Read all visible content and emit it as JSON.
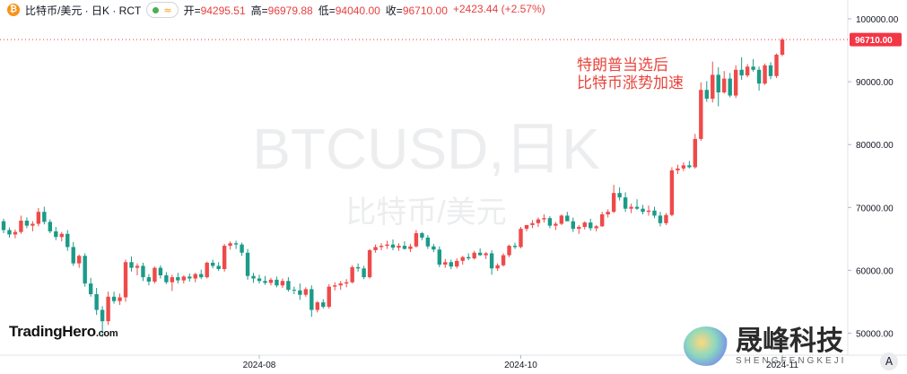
{
  "header": {
    "coin_icon": "bitcoin-icon",
    "symbol": "比特币/美元 · 日K · RCT",
    "status_wave": "≈",
    "open_label": "开=",
    "open_value": "94295.51",
    "high_label": "高=",
    "high_value": "96979.88",
    "low_label": "低=",
    "low_value": "94040.00",
    "close_label": "收=",
    "close_value": "96710.00",
    "change": "+2423.44 (+2.57%)"
  },
  "watermark": {
    "symbol": "BTCUSD,日K",
    "name": "比特币/美元"
  },
  "annotation": {
    "line1": "特朗普当选后",
    "line2": "比特币涨势加速"
  },
  "price_tag": "96710.00",
  "branding": {
    "left_main": "TradingHero",
    "left_suffix": ".com",
    "right_cn": "晟峰科技",
    "right_en": "SHENGFENGKEJI"
  },
  "auto_scale_button": "A",
  "colors": {
    "up": "#ef4a4a",
    "down": "#1b9b88",
    "accent": "#e8453c",
    "price_tag": "#f23645"
  },
  "chart_data": {
    "type": "candlestick",
    "title": "BTCUSD,日K",
    "ylim": [
      46500,
      103000
    ],
    "yticks": [
      {
        "value": 100000,
        "label": "100000.00"
      },
      {
        "value": 90000,
        "label": "90000.00"
      },
      {
        "value": 80000,
        "label": "80000.00"
      },
      {
        "value": 70000,
        "label": "70000.00"
      },
      {
        "value": 60000,
        "label": "60000.00"
      },
      {
        "value": 50000,
        "label": "50000.00"
      }
    ],
    "xticks": [
      {
        "index": 44,
        "label": "2024-08"
      },
      {
        "index": 89,
        "label": "2024-10"
      },
      {
        "index": 134,
        "label": "2024-11"
      }
    ],
    "last_close": 96710,
    "candles": [
      [
        67800,
        68200,
        65900,
        66400
      ],
      [
        66400,
        66800,
        65200,
        65700
      ],
      [
        65700,
        66500,
        65100,
        66100
      ],
      [
        66100,
        68700,
        65800,
        67900
      ],
      [
        67900,
        68400,
        66700,
        67100
      ],
      [
        67100,
        67800,
        66200,
        67400
      ],
      [
        67400,
        69900,
        67000,
        69300
      ],
      [
        69300,
        70100,
        67300,
        67700
      ],
      [
        67700,
        68100,
        65900,
        66200
      ],
      [
        66200,
        66900,
        64800,
        65300
      ],
      [
        65300,
        66100,
        64600,
        65800
      ],
      [
        65800,
        66400,
        63100,
        63700
      ],
      [
        63700,
        64500,
        60700,
        61100
      ],
      [
        61100,
        62500,
        60400,
        62300
      ],
      [
        62300,
        62700,
        57400,
        57900
      ],
      [
        57900,
        58800,
        55800,
        56200
      ],
      [
        56200,
        57200,
        52900,
        53700
      ],
      [
        53700,
        54300,
        49400,
        51900
      ],
      [
        51900,
        56600,
        51300,
        55800
      ],
      [
        55800,
        56600,
        54700,
        55100
      ],
      [
        55100,
        56300,
        54500,
        55700
      ],
      [
        55700,
        61700,
        55000,
        61300
      ],
      [
        61300,
        62200,
        59800,
        60400
      ],
      [
        60400,
        61100,
        59200,
        60700
      ],
      [
        60700,
        61200,
        58300,
        58900
      ],
      [
        58900,
        59400,
        57600,
        58200
      ],
      [
        58200,
        60600,
        57900,
        60400
      ],
      [
        60400,
        60800,
        58700,
        59200
      ],
      [
        59200,
        59700,
        57800,
        58100
      ],
      [
        58100,
        59300,
        56700,
        58900
      ],
      [
        58900,
        59600,
        57900,
        58400
      ],
      [
        58400,
        59200,
        57900,
        59000
      ],
      [
        59000,
        59500,
        58200,
        58700
      ],
      [
        58700,
        59600,
        58100,
        59400
      ],
      [
        59400,
        60100,
        58600,
        58900
      ],
      [
        58900,
        61400,
        58700,
        61200
      ],
      [
        61200,
        61700,
        60300,
        60700
      ],
      [
        60700,
        61300,
        59900,
        60200
      ],
      [
        60200,
        64200,
        59800,
        63900
      ],
      [
        63900,
        64600,
        63300,
        64300
      ],
      [
        64300,
        64700,
        63400,
        64100
      ],
      [
        64100,
        64400,
        62300,
        62800
      ],
      [
        62800,
        63400,
        58500,
        59100
      ],
      [
        59100,
        59600,
        58000,
        58700
      ],
      [
        58700,
        59300,
        57900,
        58300
      ],
      [
        58300,
        59100,
        57700,
        58000
      ],
      [
        58000,
        58800,
        57600,
        58500
      ],
      [
        58500,
        59000,
        57300,
        57600
      ],
      [
        57600,
        58700,
        57200,
        58300
      ],
      [
        58300,
        58900,
        56600,
        56900
      ],
      [
        56900,
        57400,
        56200,
        56800
      ],
      [
        56800,
        57900,
        55300,
        56100
      ],
      [
        56100,
        57300,
        55800,
        57000
      ],
      [
        57000,
        57600,
        52600,
        53700
      ],
      [
        53700,
        55100,
        53300,
        54900
      ],
      [
        54900,
        55400,
        53900,
        54200
      ],
      [
        54200,
        57800,
        53900,
        57400
      ],
      [
        57400,
        58100,
        56800,
        57600
      ],
      [
        57600,
        58300,
        56900,
        57900
      ],
      [
        57900,
        58600,
        57300,
        58100
      ],
      [
        58100,
        60800,
        57900,
        60500
      ],
      [
        60500,
        61100,
        59800,
        60300
      ],
      [
        60300,
        60700,
        58600,
        58900
      ],
      [
        58900,
        63400,
        58700,
        63200
      ],
      [
        63200,
        64100,
        62800,
        63700
      ],
      [
        63700,
        64300,
        63200,
        63900
      ],
      [
        63900,
        64700,
        63400,
        64100
      ],
      [
        64100,
        64900,
        63200,
        63600
      ],
      [
        63600,
        64300,
        63100,
        63900
      ],
      [
        63900,
        64600,
        63300,
        63400
      ],
      [
        63400,
        64200,
        62900,
        63800
      ],
      [
        63800,
        66400,
        63600,
        65900
      ],
      [
        65900,
        66100,
        64800,
        65200
      ],
      [
        65200,
        65600,
        63400,
        63800
      ],
      [
        63800,
        64200,
        62900,
        63300
      ],
      [
        63300,
        63800,
        60500,
        60900
      ],
      [
        60900,
        61800,
        60400,
        61300
      ],
      [
        61300,
        61700,
        60200,
        60600
      ],
      [
        60600,
        61900,
        60300,
        61500
      ],
      [
        61500,
        62300,
        60900,
        62100
      ],
      [
        62100,
        62700,
        61600,
        61900
      ],
      [
        61900,
        63100,
        61700,
        62800
      ],
      [
        62800,
        63500,
        62300,
        62400
      ],
      [
        62400,
        62900,
        61800,
        62700
      ],
      [
        62700,
        63200,
        59300,
        60300
      ],
      [
        60300,
        61100,
        59900,
        60800
      ],
      [
        60800,
        62700,
        60600,
        62400
      ],
      [
        62400,
        64100,
        62100,
        63900
      ],
      [
        63900,
        64400,
        63400,
        63700
      ],
      [
        63700,
        66900,
        63500,
        66600
      ],
      [
        66600,
        67100,
        66200,
        67200
      ],
      [
        67200,
        68000,
        66700,
        67500
      ],
      [
        67500,
        68400,
        66900,
        68100
      ],
      [
        68100,
        68900,
        67600,
        68300
      ],
      [
        68300,
        68600,
        66700,
        67100
      ],
      [
        67100,
        67700,
        66400,
        67400
      ],
      [
        67400,
        68900,
        67200,
        68700
      ],
      [
        68700,
        69300,
        68200,
        67800
      ],
      [
        67800,
        68400,
        66100,
        66600
      ],
      [
        66600,
        67200,
        65800,
        66900
      ],
      [
        66900,
        67800,
        66500,
        67600
      ],
      [
        67600,
        68200,
        66300,
        66700
      ],
      [
        66700,
        67200,
        66200,
        67000
      ],
      [
        67000,
        69300,
        66900,
        68900
      ],
      [
        68900,
        69700,
        68400,
        69300
      ],
      [
        69300,
        73600,
        69100,
        72300
      ],
      [
        72300,
        73200,
        71100,
        71600
      ],
      [
        71600,
        72400,
        69300,
        69800
      ],
      [
        69800,
        70600,
        69100,
        70100
      ],
      [
        70100,
        71300,
        69600,
        69800
      ],
      [
        69800,
        70400,
        68900,
        69300
      ],
      [
        69300,
        70300,
        68700,
        69500
      ],
      [
        69500,
        70100,
        68300,
        68700
      ],
      [
        68700,
        69300,
        67000,
        67500
      ],
      [
        67500,
        69100,
        67200,
        68800
      ],
      [
        68800,
        76400,
        68600,
        75900
      ],
      [
        75900,
        76800,
        75300,
        76200
      ],
      [
        76200,
        77200,
        75800,
        76700
      ],
      [
        76700,
        77400,
        76200,
        76400
      ],
      [
        76400,
        81700,
        76200,
        80900
      ],
      [
        80900,
        89900,
        80600,
        88700
      ],
      [
        88700,
        90100,
        86800,
        87300
      ],
      [
        87300,
        93200,
        86700,
        91100
      ],
      [
        91100,
        92300,
        86100,
        88300
      ],
      [
        88300,
        91700,
        88100,
        90500
      ],
      [
        90500,
        91400,
        87500,
        87800
      ],
      [
        87800,
        92600,
        87400,
        91900
      ],
      [
        91900,
        93900,
        90300,
        91000
      ],
      [
        91000,
        92800,
        90700,
        92400
      ],
      [
        92400,
        93600,
        91600,
        91900
      ],
      [
        91900,
        92400,
        88600,
        89700
      ],
      [
        89700,
        92900,
        89500,
        92600
      ],
      [
        92600,
        93100,
        90400,
        90900
      ],
      [
        90900,
        94500,
        90600,
        94300
      ],
      [
        94300,
        96980,
        94040,
        96710
      ]
    ]
  }
}
